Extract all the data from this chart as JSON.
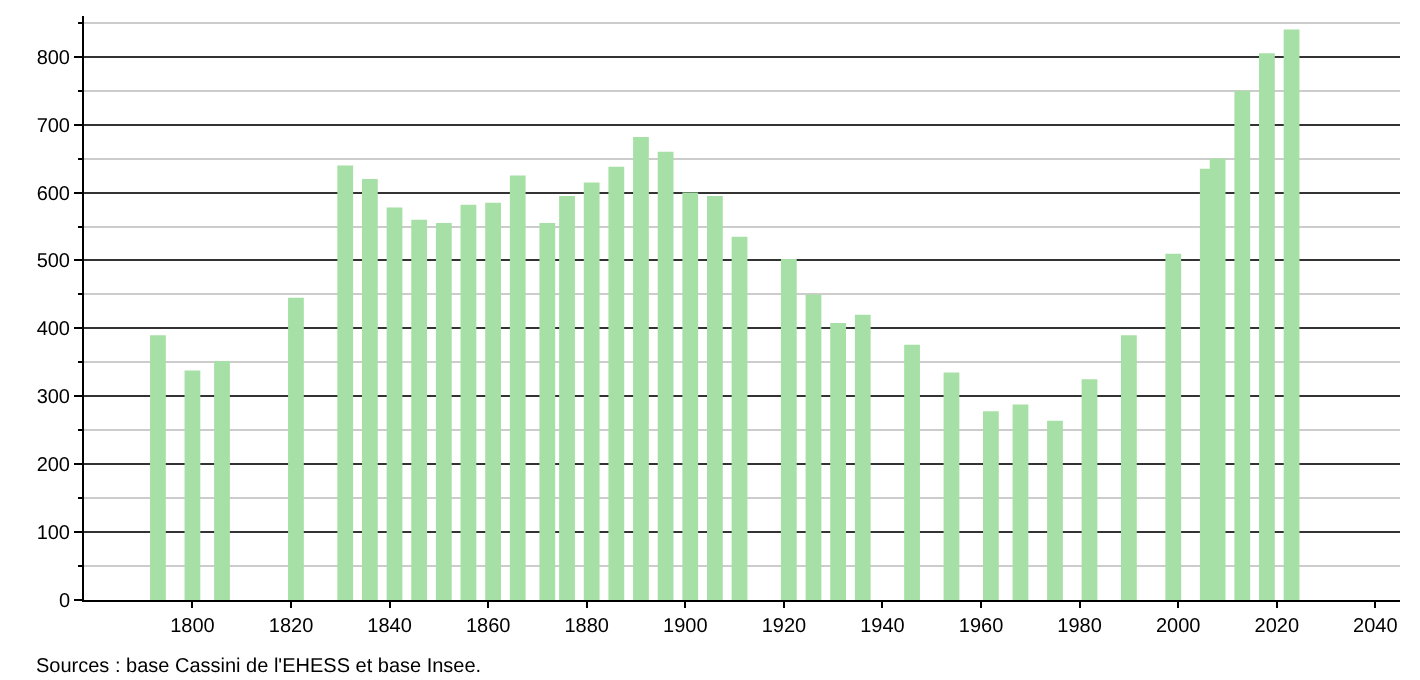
{
  "chart_data": {
    "type": "bar",
    "x": [
      1793,
      1800,
      1806,
      1821,
      1831,
      1836,
      1841,
      1846,
      1851,
      1856,
      1861,
      1866,
      1872,
      1876,
      1881,
      1886,
      1891,
      1896,
      1901,
      1906,
      1911,
      1921,
      1926,
      1931,
      1936,
      1946,
      1954,
      1962,
      1968,
      1975,
      1982,
      1990,
      1999,
      2006,
      2008,
      2013,
      2018,
      2023
    ],
    "values": [
      390,
      338,
      352,
      445,
      640,
      620,
      578,
      560,
      555,
      582,
      585,
      625,
      555,
      595,
      615,
      638,
      682,
      660,
      600,
      595,
      535,
      502,
      450,
      408,
      420,
      376,
      335,
      278,
      288,
      264,
      325,
      390,
      510,
      635,
      650,
      750,
      805,
      840
    ],
    "color": "#a6e0a6",
    "xlim": [
      1778,
      2045
    ],
    "xticks": [
      1800,
      1820,
      1840,
      1860,
      1880,
      1900,
      1920,
      1940,
      1960,
      1980,
      2000,
      2020,
      2040
    ],
    "ylim": [
      0,
      860
    ],
    "yticks": [
      0,
      100,
      200,
      300,
      400,
      500,
      600,
      700,
      800
    ],
    "grid": "y",
    "annotations": [
      "Sources : base Cassini de l'EHESS et base Insee."
    ]
  }
}
